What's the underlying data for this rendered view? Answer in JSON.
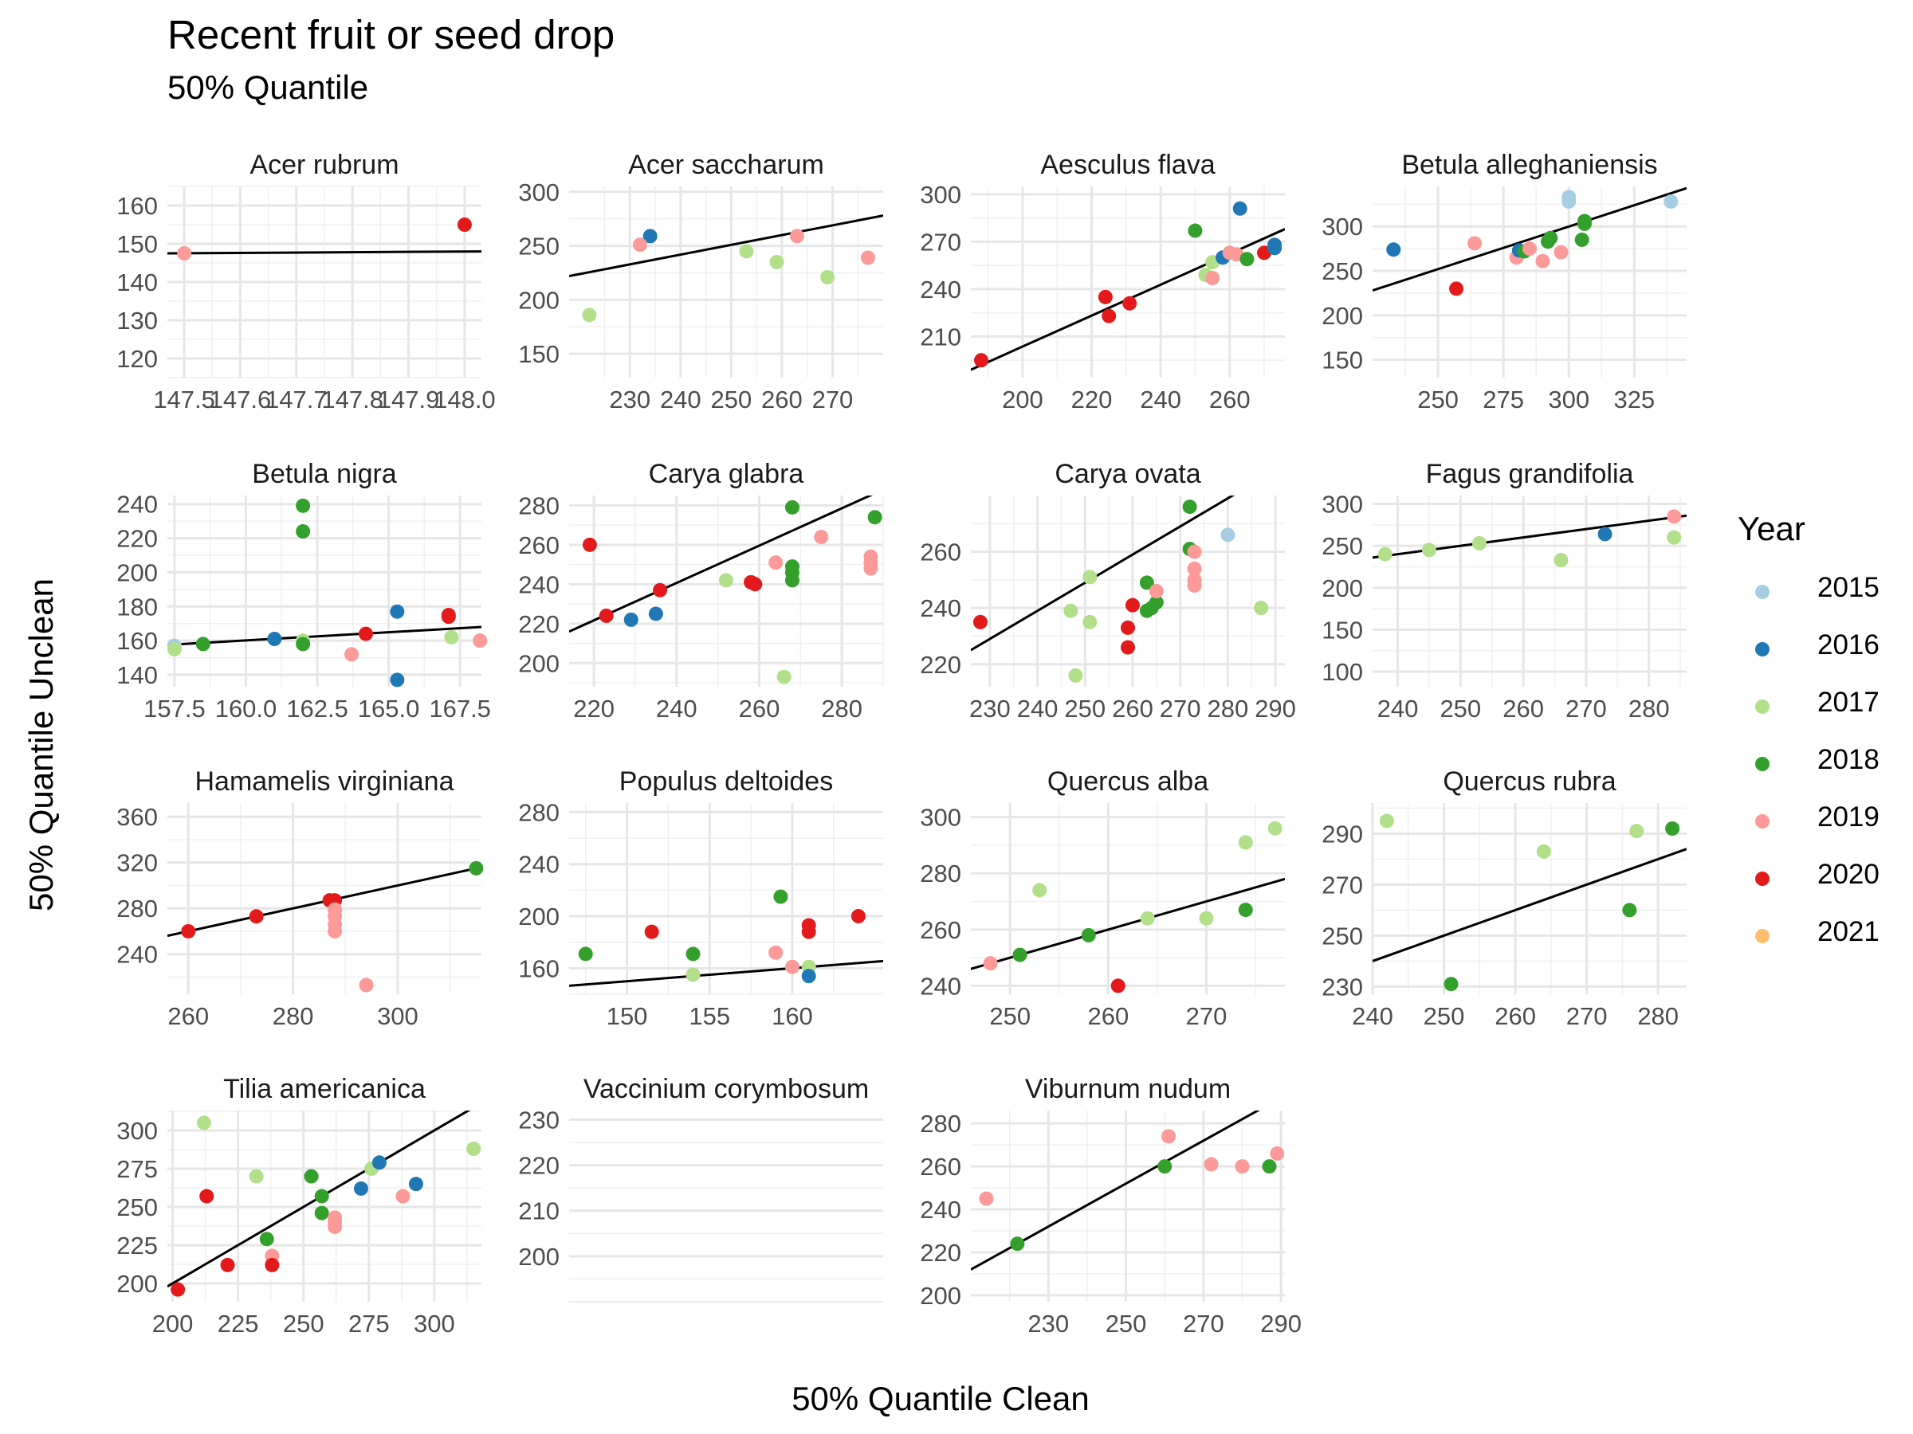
{
  "title": "Recent fruit or seed drop",
  "subtitle": "50% Quantile",
  "xlabel": "50% Quantile Clean",
  "ylabel": "50% Quantile Unclean",
  "legend": {
    "title": "Year",
    "items": [
      {
        "label": "2015",
        "color": "#a6cee3"
      },
      {
        "label": "2016",
        "color": "#1f78b4"
      },
      {
        "label": "2017",
        "color": "#b2df8a"
      },
      {
        "label": "2018",
        "color": "#33a02c"
      },
      {
        "label": "2019",
        "color": "#fb9a99"
      },
      {
        "label": "2020",
        "color": "#e31a1c"
      },
      {
        "label": "2021",
        "color": "#fdbf6f"
      }
    ]
  },
  "chart_data": [
    {
      "type": "scatter",
      "title": "Acer rubrum",
      "xlim": [
        147.47,
        148.03
      ],
      "ylim": [
        115,
        165
      ],
      "xticks": [
        147.5,
        147.6,
        147.7,
        147.8,
        147.9,
        148.0
      ],
      "xtick_labels": [
        "147.5",
        "147.6",
        "147.7",
        "147.8",
        "147.9",
        "148.0"
      ],
      "yticks": [
        120,
        130,
        140,
        150,
        160
      ],
      "fit": [
        [
          147.47,
          147.5
        ],
        [
          148.03,
          148.0
        ]
      ],
      "points": [
        [
          147.5,
          147.5,
          "2019"
        ],
        [
          148.0,
          155,
          "2020"
        ]
      ]
    },
    {
      "type": "scatter",
      "title": "Acer saccharum",
      "xlim": [
        218,
        280
      ],
      "ylim": [
        128,
        305
      ],
      "xticks": [
        230,
        240,
        250,
        260,
        270
      ],
      "yticks": [
        150,
        200,
        250,
        300
      ],
      "fit": [
        [
          218,
          222
        ],
        [
          280,
          278
        ]
      ],
      "points": [
        [
          234,
          259,
          "2016"
        ],
        [
          232,
          251,
          "2019"
        ],
        [
          253,
          245,
          "2017"
        ],
        [
          259,
          235,
          "2017"
        ],
        [
          263,
          259,
          "2019"
        ],
        [
          269,
          221,
          "2017"
        ],
        [
          277,
          239,
          "2019"
        ],
        [
          222,
          186,
          "2017"
        ]
      ]
    },
    {
      "type": "scatter",
      "title": "Aesculus flava",
      "xlim": [
        185,
        276
      ],
      "ylim": [
        184,
        305
      ],
      "xticks": [
        200,
        220,
        240,
        260
      ],
      "yticks": [
        210,
        240,
        270,
        300
      ],
      "fit": [
        [
          185,
          189
        ],
        [
          276,
          278
        ]
      ],
      "points": [
        [
          188,
          195,
          "2020"
        ],
        [
          224,
          235,
          "2020"
        ],
        [
          225,
          223,
          "2020"
        ],
        [
          231,
          231,
          "2020"
        ],
        [
          250,
          277,
          "2018"
        ],
        [
          253,
          249,
          "2017"
        ],
        [
          255,
          257,
          "2017"
        ],
        [
          255,
          247,
          "2019"
        ],
        [
          258,
          260,
          "2016"
        ],
        [
          260,
          263,
          "2019"
        ],
        [
          262,
          262,
          "2019"
        ],
        [
          263,
          291,
          "2016"
        ],
        [
          265,
          259,
          "2018"
        ],
        [
          270,
          263,
          "2020"
        ],
        [
          273,
          268,
          "2016"
        ],
        [
          273,
          266,
          "2016"
        ]
      ]
    },
    {
      "type": "scatter",
      "title": "Betula alleghaniensis",
      "xlim": [
        225,
        345
      ],
      "ylim": [
        130,
        345
      ],
      "xticks": [
        250,
        275,
        300,
        325
      ],
      "yticks": [
        150,
        200,
        250,
        300
      ],
      "fit": [
        [
          225,
          228
        ],
        [
          345,
          343
        ]
      ],
      "points": [
        [
          233,
          274,
          "2016"
        ],
        [
          257,
          230,
          "2020"
        ],
        [
          264,
          281,
          "2019"
        ],
        [
          280,
          265,
          "2019"
        ],
        [
          281,
          273,
          "2016"
        ],
        [
          283,
          272,
          "2018"
        ],
        [
          285,
          275,
          "2019"
        ],
        [
          290,
          261,
          "2019"
        ],
        [
          292,
          283,
          "2018"
        ],
        [
          293,
          287,
          "2018"
        ],
        [
          297,
          271,
          "2019"
        ],
        [
          300,
          333,
          "2015"
        ],
        [
          300,
          328,
          "2015"
        ],
        [
          305,
          285,
          "2018"
        ],
        [
          306,
          306,
          "2018"
        ],
        [
          306,
          303,
          "2018"
        ],
        [
          339,
          328,
          "2015"
        ]
      ]
    },
    {
      "type": "scatter",
      "title": "Betula nigra",
      "xlim": [
        157.25,
        168.25
      ],
      "ylim": [
        133,
        245
      ],
      "xticks": [
        157.5,
        160.0,
        162.5,
        165.0,
        167.5
      ],
      "xtick_labels": [
        "157.5",
        "160.0",
        "162.5",
        "165.0",
        "167.5"
      ],
      "yticks": [
        140,
        160,
        180,
        200,
        220,
        240
      ],
      "fit": [
        [
          157.25,
          157.5
        ],
        [
          168.25,
          168
        ]
      ],
      "points": [
        [
          157.5,
          157,
          "2015"
        ],
        [
          157.5,
          155,
          "2017"
        ],
        [
          158.5,
          158,
          "2018"
        ],
        [
          161,
          161,
          "2016"
        ],
        [
          162,
          239,
          "2018"
        ],
        [
          162,
          224,
          "2018"
        ],
        [
          162,
          160,
          "2017"
        ],
        [
          162,
          158,
          "2018"
        ],
        [
          163.7,
          152,
          "2019"
        ],
        [
          164.2,
          164,
          "2020"
        ],
        [
          165.3,
          177,
          "2016"
        ],
        [
          165.3,
          137,
          "2016"
        ],
        [
          167.1,
          175,
          "2020"
        ],
        [
          167.1,
          174,
          "2020"
        ],
        [
          167.2,
          162,
          "2017"
        ],
        [
          168.2,
          160,
          "2019"
        ]
      ]
    },
    {
      "type": "scatter",
      "title": "Carya glabra",
      "xlim": [
        214,
        290
      ],
      "ylim": [
        188,
        285
      ],
      "xticks": [
        220,
        240,
        260,
        280
      ],
      "yticks": [
        200,
        220,
        240,
        260,
        280
      ],
      "fit": [
        [
          214,
          216
        ],
        [
          290,
          288
        ]
      ],
      "points": [
        [
          219,
          260,
          "2020"
        ],
        [
          223,
          224,
          "2020"
        ],
        [
          229,
          222,
          "2016"
        ],
        [
          235,
          225,
          "2016"
        ],
        [
          236,
          237,
          "2020"
        ],
        [
          252,
          242,
          "2017"
        ],
        [
          258,
          241,
          "2020"
        ],
        [
          259,
          240,
          "2020"
        ],
        [
          264,
          251,
          "2019"
        ],
        [
          266,
          193,
          "2017"
        ],
        [
          268,
          279,
          "2018"
        ],
        [
          268,
          249,
          "2018"
        ],
        [
          268,
          246,
          "2018"
        ],
        [
          268,
          242,
          "2018"
        ],
        [
          275,
          264,
          "2019"
        ],
        [
          287,
          254,
          "2019"
        ],
        [
          287,
          251,
          "2019"
        ],
        [
          287,
          248,
          "2019"
        ],
        [
          288,
          274,
          "2018"
        ]
      ]
    },
    {
      "type": "scatter",
      "title": "Carya ovata",
      "xlim": [
        226,
        292
      ],
      "ylim": [
        212,
        280
      ],
      "xticks": [
        230,
        240,
        250,
        260,
        270,
        280,
        290
      ],
      "yticks": [
        220,
        240,
        260
      ],
      "fit": [
        [
          226,
          225
        ],
        [
          292,
          291
        ]
      ],
      "points": [
        [
          228,
          235,
          "2020"
        ],
        [
          247,
          239,
          "2017"
        ],
        [
          248,
          216,
          "2017"
        ],
        [
          251,
          251,
          "2017"
        ],
        [
          251,
          235,
          "2017"
        ],
        [
          259,
          233,
          "2020"
        ],
        [
          259,
          226,
          "2020"
        ],
        [
          260,
          241,
          "2020"
        ],
        [
          263,
          249,
          "2018"
        ],
        [
          263,
          239,
          "2018"
        ],
        [
          264,
          240,
          "2018"
        ],
        [
          265,
          242,
          "2018"
        ],
        [
          265,
          246,
          "2019"
        ],
        [
          272,
          276,
          "2018"
        ],
        [
          272,
          261,
          "2018"
        ],
        [
          273,
          260,
          "2019"
        ],
        [
          273,
          254,
          "2019"
        ],
        [
          273,
          250,
          "2019"
        ],
        [
          273,
          248,
          "2019"
        ],
        [
          280,
          266,
          "2015"
        ],
        [
          287,
          240,
          "2017"
        ]
      ]
    },
    {
      "type": "scatter",
      "title": "Fagus grandifolia",
      "xlim": [
        236,
        286
      ],
      "ylim": [
        82,
        310
      ],
      "xticks": [
        240,
        250,
        260,
        270,
        280
      ],
      "yticks": [
        100,
        150,
        200,
        250,
        300
      ],
      "fit": [
        [
          236,
          236
        ],
        [
          286,
          286
        ]
      ],
      "points": [
        [
          238,
          240,
          "2017"
        ],
        [
          245,
          245,
          "2017"
        ],
        [
          253,
          253,
          "2017"
        ],
        [
          266,
          233,
          "2017"
        ],
        [
          273,
          264,
          "2016"
        ],
        [
          284,
          285,
          "2019"
        ],
        [
          284,
          260,
          "2017"
        ]
      ]
    },
    {
      "type": "scatter",
      "title": "Hamamelis virginiana",
      "xlim": [
        256,
        316
      ],
      "ylim": [
        205,
        372
      ],
      "xticks": [
        260,
        280,
        300
      ],
      "yticks": [
        240,
        280,
        320,
        360
      ],
      "fit": [
        [
          256,
          256
        ],
        [
          316,
          316
        ]
      ],
      "points": [
        [
          260,
          260,
          "2020"
        ],
        [
          273,
          273,
          "2020"
        ],
        [
          287,
          287,
          "2020"
        ],
        [
          288,
          287,
          "2020"
        ],
        [
          288,
          279,
          "2019"
        ],
        [
          288,
          273,
          "2019"
        ],
        [
          288,
          266,
          "2019"
        ],
        [
          288,
          260,
          "2019"
        ],
        [
          294,
          213,
          "2019"
        ],
        [
          315,
          315,
          "2018"
        ]
      ]
    },
    {
      "type": "scatter",
      "title": "Populus deltoides",
      "xlim": [
        146.5,
        165.5
      ],
      "ylim": [
        140,
        287
      ],
      "xticks": [
        150,
        155,
        160
      ],
      "yticks": [
        160,
        200,
        240,
        280
      ],
      "fit": [
        [
          146.5,
          146.5
        ],
        [
          165.5,
          165.5
        ]
      ],
      "points": [
        [
          147.5,
          171,
          "2018"
        ],
        [
          151.5,
          188,
          "2020"
        ],
        [
          154,
          171,
          "2018"
        ],
        [
          154,
          155,
          "2017"
        ],
        [
          159,
          172,
          "2019"
        ],
        [
          159.3,
          215,
          "2018"
        ],
        [
          160,
          161,
          "2019"
        ],
        [
          161,
          193,
          "2020"
        ],
        [
          161,
          188,
          "2020"
        ],
        [
          161,
          161,
          "2017"
        ],
        [
          161,
          154,
          "2016"
        ],
        [
          164,
          200,
          "2020"
        ]
      ]
    },
    {
      "type": "scatter",
      "title": "Quercus alba",
      "xlim": [
        246,
        278
      ],
      "ylim": [
        237,
        305
      ],
      "xticks": [
        250,
        260,
        270
      ],
      "yticks": [
        240,
        260,
        280,
        300
      ],
      "fit": [
        [
          246,
          246
        ],
        [
          278,
          278
        ]
      ],
      "points": [
        [
          248,
          248,
          "2019"
        ],
        [
          251,
          251,
          "2018"
        ],
        [
          253,
          274,
          "2017"
        ],
        [
          258,
          258,
          "2018"
        ],
        [
          261,
          240,
          "2020"
        ],
        [
          264,
          264,
          "2017"
        ],
        [
          270,
          264,
          "2017"
        ],
        [
          274,
          291,
          "2017"
        ],
        [
          274,
          267,
          "2018"
        ],
        [
          277,
          296,
          "2017"
        ]
      ]
    },
    {
      "type": "scatter",
      "title": "Quercus rubra",
      "xlim": [
        240,
        284
      ],
      "ylim": [
        227,
        302
      ],
      "xticks": [
        240,
        250,
        260,
        270,
        280
      ],
      "yticks": [
        230,
        250,
        270,
        290
      ],
      "fit": [
        [
          240,
          240
        ],
        [
          284,
          284
        ]
      ],
      "points": [
        [
          242,
          295,
          "2017"
        ],
        [
          251,
          231,
          "2018"
        ],
        [
          264,
          283,
          "2017"
        ],
        [
          276,
          260,
          "2018"
        ],
        [
          277,
          291,
          "2017"
        ],
        [
          282,
          292,
          "2018"
        ]
      ]
    },
    {
      "type": "scatter",
      "title": "Tilia americanica",
      "xlim": [
        198,
        318
      ],
      "ylim": [
        188,
        313
      ],
      "xticks": [
        200,
        225,
        250,
        275,
        300
      ],
      "yticks": [
        200,
        225,
        250,
        275,
        300
      ],
      "fit": [
        [
          198,
          198
        ],
        [
          318,
          318
        ]
      ],
      "points": [
        [
          202,
          196,
          "2020"
        ],
        [
          212,
          305,
          "2017"
        ],
        [
          213,
          257,
          "2020"
        ],
        [
          221,
          212,
          "2020"
        ],
        [
          232,
          270,
          "2017"
        ],
        [
          236,
          229,
          "2018"
        ],
        [
          238,
          218,
          "2019"
        ],
        [
          238,
          212,
          "2020"
        ],
        [
          253,
          270,
          "2018"
        ],
        [
          257,
          257,
          "2018"
        ],
        [
          257,
          246,
          "2018"
        ],
        [
          262,
          243,
          "2019"
        ],
        [
          262,
          240,
          "2019"
        ],
        [
          262,
          237,
          "2019"
        ],
        [
          272,
          262,
          "2016"
        ],
        [
          276,
          275,
          "2017"
        ],
        [
          279,
          279,
          "2016"
        ],
        [
          288,
          257,
          "2019"
        ],
        [
          293,
          265,
          "2016"
        ],
        [
          315,
          288,
          "2017"
        ]
      ]
    },
    {
      "type": "scatter",
      "title": "Vaccinium corymbosum",
      "xlim": [
        0,
        1
      ],
      "ylim": [
        190,
        232
      ],
      "xticks": [],
      "yticks": [
        200,
        210,
        220,
        230
      ],
      "fit": [],
      "points": []
    },
    {
      "type": "scatter",
      "title": "Viburnum nudum",
      "xlim": [
        210,
        291
      ],
      "ylim": [
        197,
        286
      ],
      "xticks": [
        230,
        250,
        270,
        290
      ],
      "yticks": [
        200,
        220,
        240,
        260,
        280
      ],
      "fit": [
        [
          210,
          212
        ],
        [
          291,
          293
        ]
      ],
      "points": [
        [
          214,
          245,
          "2019"
        ],
        [
          222,
          224,
          "2018"
        ],
        [
          260,
          260,
          "2018"
        ],
        [
          261,
          274,
          "2019"
        ],
        [
          272,
          261,
          "2019"
        ],
        [
          280,
          260,
          "2019"
        ],
        [
          287,
          260,
          "2018"
        ],
        [
          289,
          266,
          "2019"
        ]
      ]
    }
  ]
}
